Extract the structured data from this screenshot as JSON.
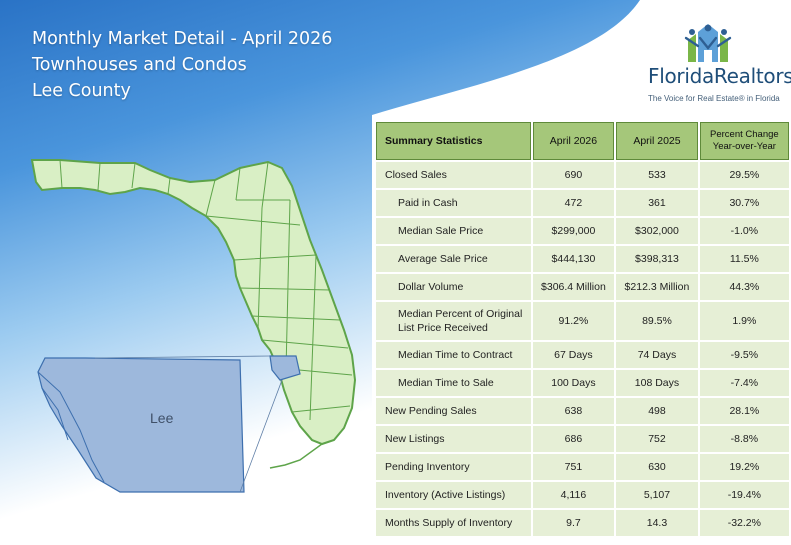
{
  "header": {
    "title": "Monthly Market Detail - April 2026",
    "subtitle": "Townhouses and Condos",
    "region": "Lee County"
  },
  "logo": {
    "name": "FloridaRealtors®",
    "tagline": "The Voice for Real Estate® in Florida"
  },
  "map": {
    "county_label": "Lee",
    "state_fill": "#d9efc5",
    "highlight_fill": "#9db8dc"
  },
  "table": {
    "headers": {
      "label": "Summary Statistics",
      "current": "April 2026",
      "previous": "April 2025",
      "change_line1": "Percent Change",
      "change_line2": "Year-over-Year"
    },
    "rows": [
      {
        "label": "Closed Sales",
        "current": "690",
        "previous": "533",
        "change": "29.5%"
      },
      {
        "label": "Paid in Cash",
        "current": "472",
        "previous": "361",
        "change": "30.7%"
      },
      {
        "label": "Median Sale Price",
        "current": "$299,000",
        "previous": "$302,000",
        "change": "-1.0%"
      },
      {
        "label": "Average Sale Price",
        "current": "$444,130",
        "previous": "$398,313",
        "change": "11.5%"
      },
      {
        "label": "Dollar Volume",
        "current": "$306.4 Million",
        "previous": "$212.3 Million",
        "change": "44.3%"
      },
      {
        "label_line1": "Median Percent of Original",
        "label_line2": "List Price Received",
        "current": "91.2%",
        "previous": "89.5%",
        "change": "1.9%"
      },
      {
        "label": "Median Time to Contract",
        "current": "67 Days",
        "previous": "74 Days",
        "change": "-9.5%"
      },
      {
        "label": "Median Time to Sale",
        "current": "100 Days",
        "previous": "108 Days",
        "change": "-7.4%"
      },
      {
        "label": "New Pending Sales",
        "current": "638",
        "previous": "498",
        "change": "28.1%"
      },
      {
        "label": "New Listings",
        "current": "686",
        "previous": "752",
        "change": "-8.8%"
      },
      {
        "label": "Pending Inventory",
        "current": "751",
        "previous": "630",
        "change": "19.2%"
      },
      {
        "label": "Inventory (Active Listings)",
        "current": "4,116",
        "previous": "5,107",
        "change": "-19.4%"
      },
      {
        "label": "Months Supply of Inventory",
        "current": "9.7",
        "previous": "14.3",
        "change": "-32.2%"
      }
    ]
  },
  "colors": {
    "header_blue": "#2f7fd0",
    "table_header_green": "#a5c77a",
    "table_cell_green": "#e6efd6"
  }
}
